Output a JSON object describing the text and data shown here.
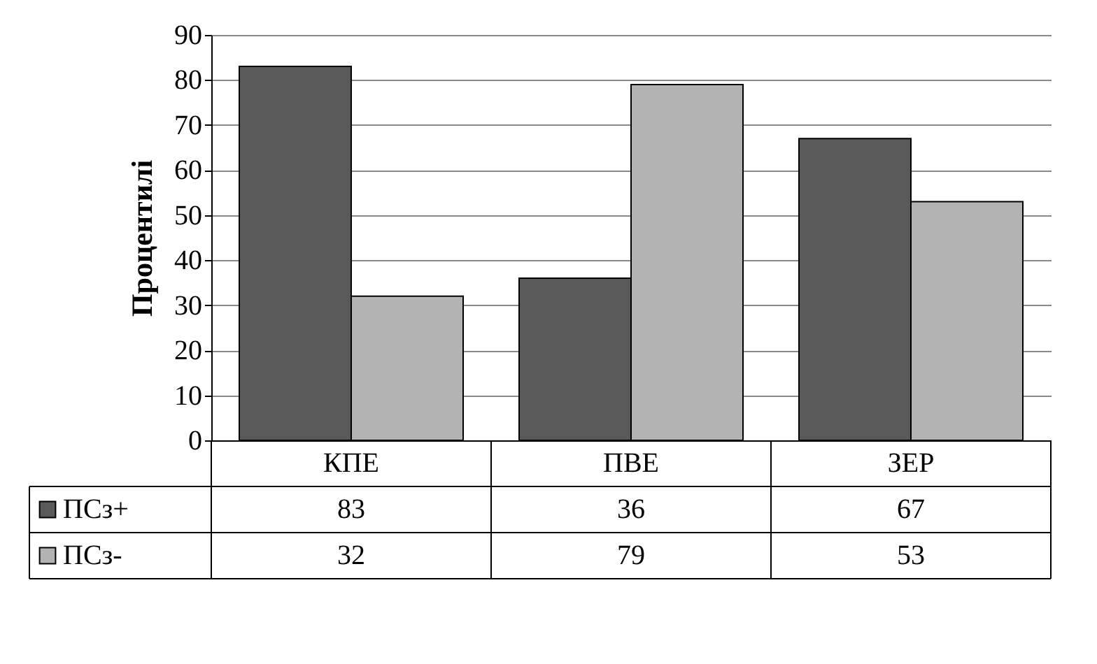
{
  "chart_data": {
    "type": "bar",
    "ylabel": "Процентилі",
    "categories": [
      "КПЕ",
      "ПВЕ",
      "ЗЕР"
    ],
    "series": [
      {
        "name": "ПСз+",
        "color": "#595959",
        "values": [
          83,
          36,
          67
        ]
      },
      {
        "name": "ПСз-",
        "color": "#b3b3b3",
        "values": [
          32,
          79,
          53
        ]
      }
    ],
    "ylim": [
      0,
      90
    ],
    "yticks": [
      0,
      10,
      20,
      30,
      40,
      50,
      60,
      70,
      80,
      90
    ],
    "grid": "y",
    "legend": "bottom",
    "data_labels": true
  }
}
